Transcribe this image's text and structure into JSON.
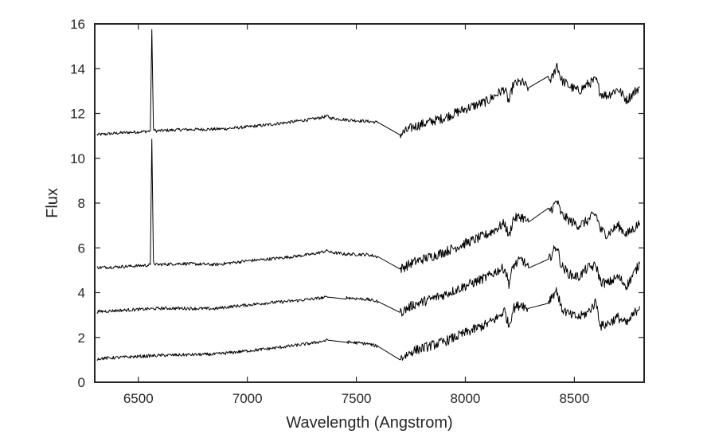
{
  "chart_data": {
    "type": "line",
    "title": "",
    "xlabel": "Wavelength (Angstrom)",
    "ylabel": "Flux",
    "xlim": [
      6300,
      8820
    ],
    "ylim": [
      0,
      16
    ],
    "xticks": [
      6500,
      7000,
      7500,
      8000,
      8500
    ],
    "yticks": [
      0,
      2,
      4,
      6,
      8,
      10,
      12,
      14,
      16
    ],
    "grid": false,
    "legend": "none",
    "colors": {
      "line": "#000000",
      "axes": "#262626"
    },
    "series": [
      {
        "points": [
          [
            6310,
            11.05
          ],
          [
            6400,
            11.12
          ],
          [
            6500,
            11.18
          ],
          [
            6540,
            11.2
          ],
          [
            6555,
            11.22
          ],
          [
            6562,
            15.75
          ],
          [
            6569,
            11.3
          ],
          [
            6580,
            11.22
          ],
          [
            6700,
            11.28
          ],
          [
            6850,
            11.3
          ],
          [
            6900,
            11.32
          ],
          [
            7000,
            11.4
          ],
          [
            7100,
            11.5
          ],
          [
            7200,
            11.62
          ],
          [
            7300,
            11.75
          ],
          [
            7370,
            11.88
          ],
          [
            7380,
            11.8
          ],
          [
            7450,
            11.72
          ],
          [
            7550,
            11.65
          ],
          [
            7600,
            11.6
          ],
          [
            7700,
            11.05
          ],
          [
            7760,
            11.4
          ],
          [
            7900,
            11.8
          ],
          [
            8000,
            12.2
          ],
          [
            8100,
            12.55
          ],
          [
            8150,
            12.9
          ],
          [
            8180,
            13.1
          ],
          [
            8200,
            12.5
          ],
          [
            8220,
            13.3
          ],
          [
            8260,
            13.4
          ],
          [
            8280,
            13.2
          ],
          [
            8290,
            13.15
          ],
          [
            8380,
            13.45
          ],
          [
            8400,
            13.6
          ],
          [
            8420,
            14.2
          ],
          [
            8440,
            13.5
          ],
          [
            8480,
            13.2
          ],
          [
            8520,
            13.0
          ],
          [
            8560,
            13.3
          ],
          [
            8580,
            13.4
          ],
          [
            8600,
            13.5
          ],
          [
            8620,
            12.9
          ],
          [
            8650,
            12.8
          ],
          [
            8700,
            13.1
          ],
          [
            8740,
            12.6
          ],
          [
            8800,
            13.2
          ]
        ]
      },
      {
        "points": [
          [
            6310,
            5.12
          ],
          [
            6400,
            5.15
          ],
          [
            6500,
            5.2
          ],
          [
            6540,
            5.22
          ],
          [
            6555,
            5.25
          ],
          [
            6562,
            10.85
          ],
          [
            6569,
            5.35
          ],
          [
            6580,
            5.25
          ],
          [
            6700,
            5.3
          ],
          [
            6850,
            5.25
          ],
          [
            6900,
            5.3
          ],
          [
            7000,
            5.42
          ],
          [
            7100,
            5.5
          ],
          [
            7200,
            5.6
          ],
          [
            7300,
            5.72
          ],
          [
            7370,
            5.88
          ],
          [
            7380,
            5.8
          ],
          [
            7450,
            5.72
          ],
          [
            7550,
            5.7
          ],
          [
            7600,
            5.6
          ],
          [
            7700,
            5.05
          ],
          [
            7760,
            5.35
          ],
          [
            7900,
            5.8
          ],
          [
            8000,
            6.2
          ],
          [
            8100,
            6.6
          ],
          [
            8150,
            6.9
          ],
          [
            8180,
            7.1
          ],
          [
            8200,
            6.5
          ],
          [
            8220,
            7.3
          ],
          [
            8260,
            7.4
          ],
          [
            8280,
            7.2
          ],
          [
            8290,
            7.15
          ],
          [
            8380,
            7.6
          ],
          [
            8400,
            7.8
          ],
          [
            8420,
            8.1
          ],
          [
            8440,
            7.5
          ],
          [
            8480,
            7.2
          ],
          [
            8520,
            7.0
          ],
          [
            8560,
            7.2
          ],
          [
            8580,
            7.4
          ],
          [
            8600,
            7.5
          ],
          [
            8620,
            6.8
          ],
          [
            8650,
            6.6
          ],
          [
            8700,
            7.0
          ],
          [
            8740,
            6.6
          ],
          [
            8800,
            7.1
          ]
        ]
      },
      {
        "points": [
          [
            6310,
            3.15
          ],
          [
            6400,
            3.2
          ],
          [
            6500,
            3.25
          ],
          [
            6600,
            3.3
          ],
          [
            6700,
            3.3
          ],
          [
            6850,
            3.28
          ],
          [
            6900,
            3.35
          ],
          [
            7000,
            3.45
          ],
          [
            7100,
            3.55
          ],
          [
            7200,
            3.62
          ],
          [
            7300,
            3.72
          ],
          [
            7370,
            3.8
          ],
          [
            7450,
            3.78
          ],
          [
            7550,
            3.7
          ],
          [
            7600,
            3.6
          ],
          [
            7700,
            3.1
          ],
          [
            7760,
            3.45
          ],
          [
            7900,
            3.9
          ],
          [
            8000,
            4.3
          ],
          [
            8100,
            4.7
          ],
          [
            8150,
            5.0
          ],
          [
            8180,
            5.1
          ],
          [
            8200,
            4.4
          ],
          [
            8220,
            5.2
          ],
          [
            8260,
            5.5
          ],
          [
            8280,
            5.2
          ],
          [
            8290,
            5.1
          ],
          [
            8380,
            5.4
          ],
          [
            8400,
            5.8
          ],
          [
            8420,
            6.1
          ],
          [
            8440,
            5.2
          ],
          [
            8480,
            4.8
          ],
          [
            8520,
            4.7
          ],
          [
            8560,
            5.1
          ],
          [
            8600,
            5.2
          ],
          [
            8620,
            4.5
          ],
          [
            8650,
            4.4
          ],
          [
            8700,
            4.7
          ],
          [
            8740,
            4.3
          ],
          [
            8800,
            5.3
          ]
        ]
      },
      {
        "points": [
          [
            6310,
            1.05
          ],
          [
            6400,
            1.1
          ],
          [
            6500,
            1.15
          ],
          [
            6600,
            1.2
          ],
          [
            6700,
            1.22
          ],
          [
            6850,
            1.25
          ],
          [
            6900,
            1.3
          ],
          [
            7000,
            1.4
          ],
          [
            7100,
            1.5
          ],
          [
            7200,
            1.62
          ],
          [
            7300,
            1.75
          ],
          [
            7370,
            1.88
          ],
          [
            7450,
            1.8
          ],
          [
            7550,
            1.72
          ],
          [
            7600,
            1.6
          ],
          [
            7700,
            1.05
          ],
          [
            7760,
            1.4
          ],
          [
            7900,
            1.8
          ],
          [
            8000,
            2.2
          ],
          [
            8100,
            2.6
          ],
          [
            8150,
            2.9
          ],
          [
            8180,
            3.2
          ],
          [
            8200,
            2.5
          ],
          [
            8220,
            3.3
          ],
          [
            8260,
            3.5
          ],
          [
            8280,
            3.3
          ],
          [
            8290,
            3.3
          ],
          [
            8380,
            3.6
          ],
          [
            8400,
            3.9
          ],
          [
            8420,
            4.1
          ],
          [
            8440,
            3.3
          ],
          [
            8480,
            3.0
          ],
          [
            8520,
            2.9
          ],
          [
            8560,
            3.1
          ],
          [
            8600,
            3.6
          ],
          [
            8620,
            2.5
          ],
          [
            8650,
            2.6
          ],
          [
            8700,
            2.9
          ],
          [
            8740,
            2.6
          ],
          [
            8800,
            3.4
          ]
        ]
      }
    ]
  }
}
